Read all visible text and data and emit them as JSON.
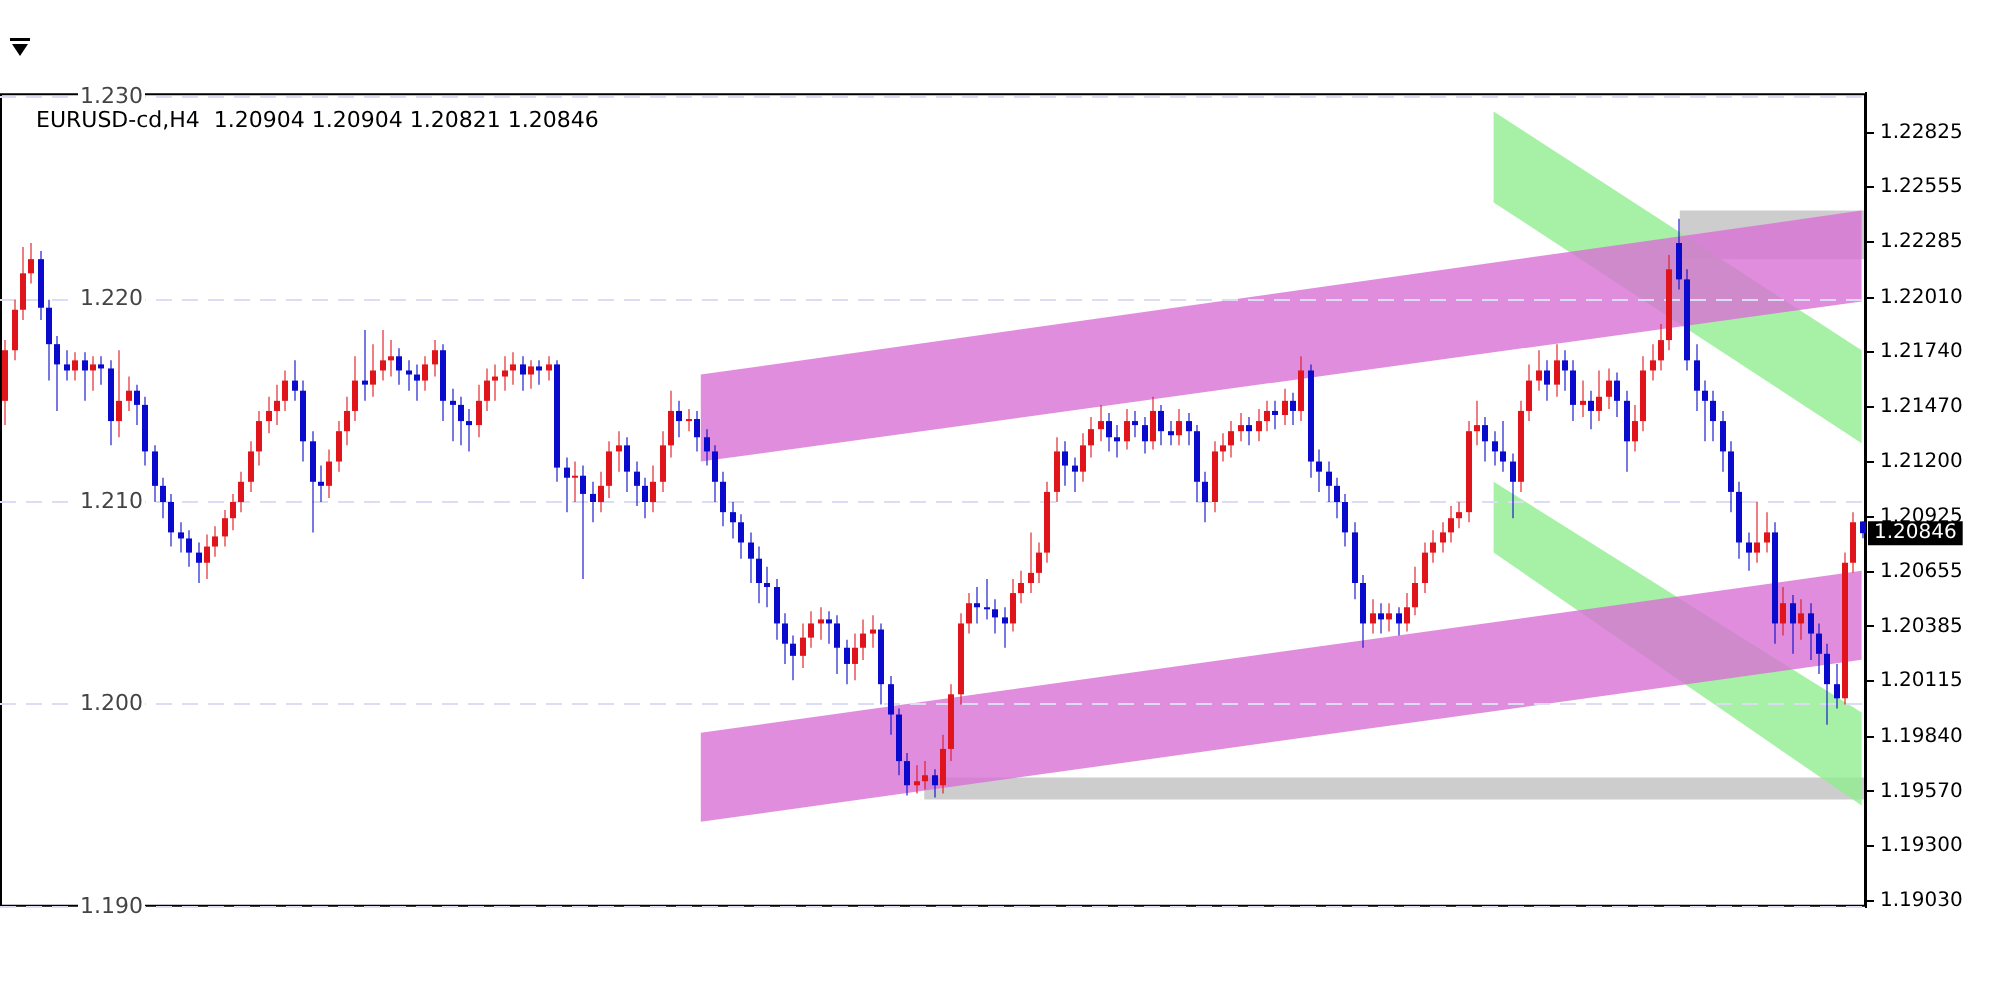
{
  "chart_data": {
    "type": "candlestick",
    "title": "EURUSD-cd,H4  1.20904 1.20904 1.20821 1.20846",
    "colors": [
      "#e0141b",
      "#e0141b",
      "#e0141b",
      "#e0141b",
      "#0a0acc",
      "#0a0acc",
      "#0a0acc",
      "#0a0acc",
      "#e0141b",
      "#0a0acc",
      "#e0141b",
      "#0a0acc",
      "#0a0acc",
      "#e0141b",
      "#e0141b",
      "#0a0acc",
      "#0a0acc",
      "#0a0acc",
      "#0a0acc",
      "#0a0acc",
      "#0a0acc",
      "#0a0acc",
      "#0a0acc",
      "#e0141b",
      "#e0141b",
      "#e0141b",
      "#e0141b",
      "#e0141b",
      "#e0141b",
      "#e0141b",
      "#e0141b",
      "#e0141b",
      "#e0141b",
      "#0a0acc",
      "#0a0acc",
      "#0a0acc",
      "#0a0acc",
      "#e0141b",
      "#e0141b",
      "#e0141b",
      "#e0141b",
      "#0a0acc",
      "#e0141b",
      "#e0141b",
      "#e0141b",
      "#0a0acc",
      "#0a0acc",
      "#0a0acc",
      "#e0141b",
      "#e0141b",
      "#0a0acc",
      "#0a0acc",
      "#0a0acc",
      "#0a0acc",
      "#e0141b",
      "#e0141b",
      "#e0141b",
      "#e0141b",
      "#e0141b",
      "#0a0acc",
      "#e0141b",
      "#0a0acc",
      "#e0141b",
      "#0a0acc",
      "#0a0acc",
      "#e0141b",
      "#0a0acc",
      "#0a0acc",
      "#e0141b",
      "#e0141b",
      "#e0141b",
      "#0a0acc",
      "#0a0acc",
      "#0a0acc",
      "#e0141b",
      "#e0141b",
      "#e0141b",
      "#0a0acc",
      "#e0141b",
      "#0a0acc",
      "#0a0acc",
      "#0a0acc",
      "#0a0acc",
      "#0a0acc",
      "#0a0acc",
      "#0a0acc",
      "#0a0acc",
      "#0a0acc",
      "#0a0acc",
      "#0a0acc",
      "#0a0acc",
      "#e0141b",
      "#e0141b",
      "#e0141b",
      "#0a0acc",
      "#0a0acc",
      "#0a0acc",
      "#e0141b",
      "#e0141b",
      "#e0141b",
      "#0a0acc",
      "#0a0acc",
      "#0a0acc",
      "#0a0acc",
      "#e0141b",
      "#e0141b",
      "#0a0acc",
      "#e0141b",
      "#e0141b",
      "#e0141b",
      "#e0141b",
      "#0a0acc",
      "#0a0acc",
      "#0a0acc",
      "#0a0acc",
      "#e0141b",
      "#e0141b",
      "#e0141b",
      "#e0141b",
      "#e0141b",
      "#e0141b",
      "#0a0acc",
      "#0a0acc",
      "#e0141b",
      "#e0141b",
      "#e0141b",
      "#0a0acc",
      "#0a0acc",
      "#e0141b",
      "#0a0acc",
      "#0a0acc",
      "#e0141b",
      "#0a0acc",
      "#0a0acc",
      "#e0141b",
      "#0a0acc",
      "#0a0acc",
      "#0a0acc",
      "#e0141b",
      "#e0141b",
      "#e0141b",
      "#e0141b",
      "#0a0acc",
      "#e0141b",
      "#e0141b",
      "#0a0acc",
      "#e0141b",
      "#0a0acc",
      "#e0141b",
      "#0a0acc",
      "#0a0acc",
      "#0a0acc",
      "#0a0acc",
      "#0a0acc",
      "#0a0acc",
      "#0a0acc",
      "#e0141b",
      "#0a0acc",
      "#e0141b",
      "#0a0acc",
      "#e0141b",
      "#e0141b",
      "#e0141b",
      "#e0141b",
      "#e0141b",
      "#e0141b",
      "#e0141b",
      "#e0141b",
      "#e0141b",
      "#0a0acc",
      "#0a0acc",
      "#0a0acc",
      "#0a0acc",
      "#e0141b",
      "#e0141b",
      "#e0141b",
      "#0a0acc",
      "#e0141b",
      "#0a0acc",
      "#0a0acc",
      "#e0141b",
      "#0a0acc",
      "#e0141b",
      "#e0141b",
      "#0a0acc",
      "#0a0acc",
      "#e0141b",
      "#e0141b",
      "#e0141b",
      "#e0141b",
      "#e0141b",
      "#0a0acc",
      "#0a0acc",
      "#0a0acc",
      "#0a0acc",
      "#0a0acc",
      "#0a0acc",
      "#0a0acc",
      "#0a0acc",
      "#0a0acc",
      "#e0141b",
      "#e0141b",
      "#0a0acc",
      "#e0141b",
      "#0a0acc",
      "#e0141b",
      "#0a0acc",
      "#0a0acc",
      "#0a0acc",
      "#0a0acc",
      "#e0141b",
      "#e0141b",
      "#0a0acc"
    ],
    "ylim": [
      1.19,
      1.2302
    ],
    "yticks": [
      {
        "value": 1.19,
        "label": "1.190"
      },
      {
        "value": 1.2,
        "label": "1.200"
      },
      {
        "value": 1.21,
        "label": "1.210"
      },
      {
        "value": 1.22,
        "label": "1.220"
      },
      {
        "value": 1.23,
        "label": "1.230"
      }
    ],
    "y2lim": [
      1.19,
      1.2302
    ],
    "y2ticks": [
      {
        "value": 1.1903,
        "label": "1.19030"
      },
      {
        "value": 1.193,
        "label": "1.19300"
      },
      {
        "value": 1.1957,
        "label": "1.19570"
      },
      {
        "value": 1.1984,
        "label": "1.19840"
      },
      {
        "value": 1.20115,
        "label": "1.20115"
      },
      {
        "value": 1.20385,
        "label": "1.20385"
      },
      {
        "value": 1.20655,
        "label": "1.20655"
      },
      {
        "value": 1.20925,
        "label": "1.20925"
      },
      {
        "value": 1.212,
        "label": "1.21200"
      },
      {
        "value": 1.2147,
        "label": "1.21470"
      },
      {
        "value": 1.2174,
        "label": "1.21740"
      },
      {
        "value": 1.2201,
        "label": "1.22010"
      },
      {
        "value": 1.22285,
        "label": "1.22285"
      },
      {
        "value": 1.22555,
        "label": "1.22555"
      },
      {
        "value": 1.22825,
        "label": "1.22825"
      }
    ],
    "grid": "y",
    "annotations": [
      "1.20846"
    ],
    "categories": [
      null,
      null,
      null,
      null,
      null,
      null,
      null,
      null,
      null,
      null,
      null,
      null,
      null,
      null,
      null,
      null,
      null,
      null,
      null,
      null,
      null,
      null,
      null,
      null,
      null,
      null,
      null,
      null,
      null,
      null,
      null,
      null,
      null,
      null,
      null,
      null,
      null,
      null,
      null,
      null,
      null,
      null,
      null,
      null,
      null,
      null,
      null,
      null,
      null,
      null,
      null,
      null,
      null,
      null,
      null,
      null,
      null,
      null,
      null,
      null,
      null,
      null,
      null,
      null,
      null,
      null,
      null,
      null,
      null,
      null,
      null,
      null,
      null,
      null,
      null,
      null,
      null,
      null,
      null,
      null,
      null,
      null,
      null,
      null,
      null,
      null,
      null,
      null,
      null,
      null,
      null,
      null,
      null,
      null,
      null,
      null,
      null,
      null,
      null,
      null,
      null,
      null,
      null,
      null,
      null,
      null,
      null,
      null,
      null,
      null,
      null,
      null,
      null,
      null,
      null,
      null,
      null,
      null,
      null,
      null,
      null,
      null,
      null,
      null,
      null,
      null,
      null,
      null,
      null,
      null,
      null,
      null,
      null,
      null,
      null,
      null,
      null,
      null,
      null,
      null,
      null,
      null,
      null,
      null,
      null,
      null,
      null,
      null,
      null,
      null,
      null,
      null,
      null,
      null,
      null,
      null,
      null,
      null,
      null,
      null,
      null,
      null,
      null,
      null,
      null,
      null,
      null,
      null,
      null,
      null,
      null,
      null,
      null,
      null,
      null,
      null,
      null,
      null,
      null,
      null,
      null,
      null,
      null,
      null,
      null,
      null,
      null,
      null,
      null,
      null,
      null,
      null,
      null,
      null,
      null,
      null,
      null,
      null,
      null,
      null,
      null,
      null,
      null,
      null,
      null,
      null,
      null,
      null,
      null,
      null,
      null,
      null,
      null
    ],
    "ohlc": [
      [
        1.215,
        1.218,
        1.2138,
        1.2175
      ],
      [
        1.2175,
        1.22,
        1.217,
        1.2195
      ],
      [
        1.2195,
        1.2226,
        1.219,
        1.2213
      ],
      [
        1.2213,
        1.2228,
        1.2208,
        1.222
      ],
      [
        1.222,
        1.2224,
        1.219,
        1.2196
      ],
      [
        1.2196,
        1.22,
        1.216,
        1.2178
      ],
      [
        1.2178,
        1.2182,
        1.2145,
        1.2168
      ],
      [
        1.2168,
        1.2175,
        1.216,
        1.2165
      ],
      [
        1.2165,
        1.2174,
        1.216,
        1.217
      ],
      [
        1.217,
        1.2174,
        1.215,
        1.2165
      ],
      [
        1.2165,
        1.2172,
        1.2155,
        1.2168
      ],
      [
        1.2168,
        1.2172,
        1.2158,
        1.2166
      ],
      [
        1.2166,
        1.217,
        1.2128,
        1.214
      ],
      [
        1.214,
        1.2175,
        1.2132,
        1.215
      ],
      [
        1.215,
        1.2162,
        1.2145,
        1.2155
      ],
      [
        1.2155,
        1.2158,
        1.2138,
        1.2148
      ],
      [
        1.2148,
        1.2152,
        1.2118,
        1.2125
      ],
      [
        1.2125,
        1.2128,
        1.21,
        1.2108
      ],
      [
        1.2108,
        1.2112,
        1.2092,
        1.21
      ],
      [
        1.21,
        1.2104,
        1.2078,
        1.2085
      ],
      [
        1.2085,
        1.209,
        1.2075,
        1.2082
      ],
      [
        1.2082,
        1.2086,
        1.2068,
        1.2075
      ],
      [
        1.2075,
        1.208,
        1.206,
        1.207
      ],
      [
        1.207,
        1.2084,
        1.2062,
        1.2078
      ],
      [
        1.2078,
        1.2088,
        1.2073,
        1.2083
      ],
      [
        1.2083,
        1.2096,
        1.2078,
        1.2092
      ],
      [
        1.2092,
        1.2104,
        1.2086,
        1.21
      ],
      [
        1.21,
        1.2115,
        1.2095,
        1.211
      ],
      [
        1.211,
        1.213,
        1.2105,
        1.2125
      ],
      [
        1.2125,
        1.2145,
        1.2118,
        1.214
      ],
      [
        1.214,
        1.2152,
        1.2134,
        1.2145
      ],
      [
        1.2145,
        1.2158,
        1.2138,
        1.215
      ],
      [
        1.215,
        1.2165,
        1.2145,
        1.216
      ],
      [
        1.216,
        1.217,
        1.215,
        1.2155
      ],
      [
        1.2155,
        1.216,
        1.212,
        1.213
      ],
      [
        1.213,
        1.2135,
        1.2085,
        1.211
      ],
      [
        1.211,
        1.2118,
        1.21,
        1.2108
      ],
      [
        1.2108,
        1.2126,
        1.2102,
        1.212
      ],
      [
        1.212,
        1.214,
        1.2115,
        1.2135
      ],
      [
        1.2135,
        1.2152,
        1.2128,
        1.2145
      ],
      [
        1.2145,
        1.2172,
        1.214,
        1.216
      ],
      [
        1.216,
        1.2185,
        1.215,
        1.2158
      ],
      [
        1.2158,
        1.2178,
        1.2152,
        1.2165
      ],
      [
        1.2165,
        1.2185,
        1.216,
        1.217
      ],
      [
        1.217,
        1.218,
        1.2162,
        1.2172
      ],
      [
        1.2172,
        1.2176,
        1.2158,
        1.2165
      ],
      [
        1.2165,
        1.217,
        1.2155,
        1.2163
      ],
      [
        1.2163,
        1.2168,
        1.215,
        1.216
      ],
      [
        1.216,
        1.2172,
        1.2155,
        1.2168
      ],
      [
        1.2168,
        1.218,
        1.2162,
        1.2175
      ],
      [
        1.2175,
        1.2178,
        1.214,
        1.215
      ],
      [
        1.215,
        1.2156,
        1.213,
        1.2148
      ],
      [
        1.2148,
        1.2152,
        1.2128,
        1.214
      ],
      [
        1.214,
        1.2146,
        1.2125,
        1.2138
      ],
      [
        1.2138,
        1.2158,
        1.2132,
        1.215
      ],
      [
        1.215,
        1.2166,
        1.2145,
        1.216
      ],
      [
        1.216,
        1.2168,
        1.215,
        1.2162
      ],
      [
        1.2162,
        1.2172,
        1.2155,
        1.2165
      ],
      [
        1.2165,
        1.2174,
        1.2158,
        1.2168
      ],
      [
        1.2168,
        1.2172,
        1.2155,
        1.2163
      ],
      [
        1.2163,
        1.217,
        1.2156,
        1.2167
      ],
      [
        1.2167,
        1.217,
        1.2158,
        1.2165
      ],
      [
        1.2165,
        1.2172,
        1.216,
        1.2168
      ],
      [
        1.2168,
        1.217,
        1.211,
        1.2117
      ],
      [
        1.2117,
        1.2122,
        1.2095,
        1.2112
      ],
      [
        1.2112,
        1.212,
        1.21,
        1.2113
      ],
      [
        1.2113,
        1.2118,
        1.2062,
        1.2104
      ],
      [
        1.2104,
        1.211,
        1.209,
        1.21
      ],
      [
        1.21,
        1.2115,
        1.2095,
        1.2108
      ],
      [
        1.2108,
        1.213,
        1.2102,
        1.2125
      ],
      [
        1.2125,
        1.2135,
        1.2115,
        1.2128
      ],
      [
        1.2128,
        1.2132,
        1.2105,
        1.2115
      ],
      [
        1.2115,
        1.212,
        1.2098,
        1.2108
      ],
      [
        1.2108,
        1.2112,
        1.2092,
        1.21
      ],
      [
        1.21,
        1.2118,
        1.2095,
        1.211
      ],
      [
        1.211,
        1.2135,
        1.2105,
        1.2128
      ],
      [
        1.2128,
        1.2155,
        1.2122,
        1.2145
      ],
      [
        1.2145,
        1.215,
        1.2132,
        1.214
      ],
      [
        1.214,
        1.2146,
        1.2135,
        1.2141
      ],
      [
        1.2141,
        1.2145,
        1.2125,
        1.2132
      ],
      [
        1.2132,
        1.2136,
        1.2118,
        1.2125
      ],
      [
        1.2125,
        1.2128,
        1.21,
        1.211
      ],
      [
        1.211,
        1.2115,
        1.2088,
        1.2095
      ],
      [
        1.2095,
        1.21,
        1.2082,
        1.209
      ],
      [
        1.209,
        1.2094,
        1.2072,
        1.208
      ],
      [
        1.208,
        1.2085,
        1.206,
        1.2072
      ],
      [
        1.2072,
        1.2078,
        1.205,
        1.206
      ],
      [
        1.206,
        1.2068,
        1.2048,
        1.2058
      ],
      [
        1.2058,
        1.2062,
        1.2032,
        1.204
      ],
      [
        1.204,
        1.2045,
        1.202,
        1.203
      ],
      [
        1.203,
        1.2034,
        1.2012,
        1.2024
      ],
      [
        1.2024,
        1.204,
        1.2018,
        1.2033
      ],
      [
        1.2033,
        1.2046,
        1.2028,
        1.204
      ],
      [
        1.204,
        1.2048,
        1.2032,
        1.2042
      ],
      [
        1.2042,
        1.2046,
        1.203,
        1.204
      ],
      [
        1.204,
        1.2044,
        1.2015,
        1.2028
      ],
      [
        1.2028,
        1.2032,
        1.201,
        1.202
      ],
      [
        1.202,
        1.2035,
        1.2012,
        1.2028
      ],
      [
        1.2028,
        1.2042,
        1.2022,
        1.2035
      ],
      [
        1.2035,
        1.2044,
        1.2028,
        1.2037
      ],
      [
        1.2037,
        1.204,
        1.2,
        1.201
      ],
      [
        1.201,
        1.2014,
        1.1985,
        1.1995
      ],
      [
        1.1995,
        1.1998,
        1.1965,
        1.1972
      ],
      [
        1.1972,
        1.1976,
        1.1955,
        1.196
      ],
      [
        1.196,
        1.197,
        1.1956,
        1.1962
      ],
      [
        1.1962,
        1.1972,
        1.1958,
        1.1965
      ],
      [
        1.1965,
        1.1968,
        1.1954,
        1.196
      ],
      [
        1.196,
        1.1985,
        1.1956,
        1.1978
      ],
      [
        1.1978,
        1.201,
        1.1972,
        1.2005
      ],
      [
        1.2005,
        1.2045,
        1.2,
        1.204
      ],
      [
        1.204,
        1.2055,
        1.2035,
        1.205
      ],
      [
        1.205,
        1.2058,
        1.204,
        1.2048
      ],
      [
        1.2048,
        1.2062,
        1.2042,
        1.2047
      ],
      [
        1.2047,
        1.2052,
        1.2035,
        1.2043
      ],
      [
        1.2043,
        1.2048,
        1.2028,
        1.204
      ],
      [
        1.204,
        1.2062,
        1.2036,
        1.2055
      ],
      [
        1.2055,
        1.2066,
        1.205,
        1.206
      ],
      [
        1.206,
        1.2085,
        1.2055,
        1.2065
      ],
      [
        1.2065,
        1.208,
        1.206,
        1.2075
      ],
      [
        1.2075,
        1.211,
        1.207,
        1.2105
      ],
      [
        1.2105,
        1.2132,
        1.21,
        1.2125
      ],
      [
        1.2125,
        1.213,
        1.2108,
        1.2118
      ],
      [
        1.2118,
        1.2122,
        1.2105,
        1.2115
      ],
      [
        1.2115,
        1.2134,
        1.211,
        1.2128
      ],
      [
        1.2128,
        1.2142,
        1.2122,
        1.2136
      ],
      [
        1.2136,
        1.2148,
        1.213,
        1.214
      ],
      [
        1.214,
        1.2144,
        1.2125,
        1.2132
      ],
      [
        1.2132,
        1.2138,
        1.2122,
        1.213
      ],
      [
        1.213,
        1.2146,
        1.2126,
        1.214
      ],
      [
        1.214,
        1.2145,
        1.2132,
        1.2138
      ],
      [
        1.2138,
        1.2142,
        1.2124,
        1.213
      ],
      [
        1.213,
        1.2152,
        1.2126,
        1.2145
      ],
      [
        1.2145,
        1.2148,
        1.2128,
        1.2135
      ],
      [
        1.2135,
        1.214,
        1.2128,
        1.2133
      ],
      [
        1.2133,
        1.2146,
        1.2128,
        1.214
      ],
      [
        1.214,
        1.2144,
        1.2128,
        1.2135
      ],
      [
        1.2135,
        1.2138,
        1.21,
        1.211
      ],
      [
        1.211,
        1.2115,
        1.209,
        1.21
      ],
      [
        1.21,
        1.213,
        1.2095,
        1.2125
      ],
      [
        1.2125,
        1.2134,
        1.212,
        1.2128
      ],
      [
        1.2128,
        1.214,
        1.2122,
        1.2135
      ],
      [
        1.2135,
        1.2144,
        1.213,
        1.2138
      ],
      [
        1.2138,
        1.2142,
        1.2128,
        1.2135
      ],
      [
        1.2135,
        1.2146,
        1.213,
        1.214
      ],
      [
        1.214,
        1.215,
        1.2135,
        1.2145
      ],
      [
        1.2145,
        1.215,
        1.2136,
        1.2143
      ],
      [
        1.2143,
        1.2156,
        1.2138,
        1.215
      ],
      [
        1.215,
        1.2154,
        1.2138,
        1.2145
      ],
      [
        1.2145,
        1.2172,
        1.214,
        1.2165
      ],
      [
        1.2165,
        1.2168,
        1.2112,
        1.212
      ],
      [
        1.212,
        1.2126,
        1.2105,
        1.2115
      ],
      [
        1.2115,
        1.212,
        1.21,
        1.2108
      ],
      [
        1.2108,
        1.2112,
        1.2092,
        1.21
      ],
      [
        1.21,
        1.2104,
        1.2078,
        1.2085
      ],
      [
        1.2085,
        1.209,
        1.2052,
        1.206
      ],
      [
        1.206,
        1.2064,
        1.2028,
        1.204
      ],
      [
        1.204,
        1.2052,
        1.2035,
        1.2045
      ],
      [
        1.2045,
        1.205,
        1.2035,
        1.2042
      ],
      [
        1.2042,
        1.205,
        1.2036,
        1.2045
      ],
      [
        1.2045,
        1.2048,
        1.2034,
        1.204
      ],
      [
        1.204,
        1.2055,
        1.2036,
        1.2048
      ],
      [
        1.2048,
        1.2068,
        1.2044,
        1.206
      ],
      [
        1.206,
        1.208,
        1.2055,
        1.2075
      ],
      [
        1.2075,
        1.2086,
        1.207,
        1.208
      ],
      [
        1.208,
        1.209,
        1.2075,
        1.2085
      ],
      [
        1.2085,
        1.2098,
        1.208,
        1.2092
      ],
      [
        1.2092,
        1.21,
        1.2087,
        1.2095
      ],
      [
        1.2095,
        1.214,
        1.209,
        1.2135
      ],
      [
        1.2135,
        1.215,
        1.2128,
        1.2138
      ],
      [
        1.2138,
        1.2142,
        1.212,
        1.213
      ],
      [
        1.213,
        1.2135,
        1.2118,
        1.2125
      ],
      [
        1.2125,
        1.214,
        1.2115,
        1.212
      ],
      [
        1.212,
        1.2124,
        1.2092,
        1.211
      ],
      [
        1.211,
        1.215,
        1.2105,
        1.2145
      ],
      [
        1.2145,
        1.2168,
        1.214,
        1.216
      ],
      [
        1.216,
        1.2175,
        1.2155,
        1.2165
      ],
      [
        1.2165,
        1.217,
        1.215,
        1.2158
      ],
      [
        1.2158,
        1.2178,
        1.2152,
        1.217
      ],
      [
        1.217,
        1.2175,
        1.2155,
        1.2165
      ],
      [
        1.2165,
        1.217,
        1.214,
        1.2148
      ],
      [
        1.2148,
        1.216,
        1.2142,
        1.215
      ],
      [
        1.215,
        1.2155,
        1.2136,
        1.2145
      ],
      [
        1.2145,
        1.2165,
        1.214,
        1.2152
      ],
      [
        1.2152,
        1.2166,
        1.2146,
        1.216
      ],
      [
        1.216,
        1.2164,
        1.2142,
        1.215
      ],
      [
        1.215,
        1.2155,
        1.2115,
        1.213
      ],
      [
        1.213,
        1.2148,
        1.2125,
        1.214
      ],
      [
        1.214,
        1.2172,
        1.2135,
        1.2165
      ],
      [
        1.2165,
        1.2178,
        1.216,
        1.217
      ],
      [
        1.217,
        1.2188,
        1.2165,
        1.218
      ],
      [
        1.218,
        1.2222,
        1.2175,
        1.2215
      ],
      [
        1.2228,
        1.224,
        1.2205,
        1.221
      ],
      [
        1.221,
        1.2215,
        1.2165,
        1.217
      ],
      [
        1.217,
        1.2178,
        1.2145,
        1.2155
      ],
      [
        1.2155,
        1.216,
        1.213,
        1.215
      ],
      [
        1.215,
        1.2155,
        1.213,
        1.214
      ],
      [
        1.214,
        1.2145,
        1.2115,
        1.2125
      ],
      [
        1.2125,
        1.213,
        1.2095,
        1.2105
      ],
      [
        1.2105,
        1.211,
        1.2072,
        1.208
      ],
      [
        1.208,
        1.2085,
        1.2066,
        1.2075
      ],
      [
        1.2075,
        1.21,
        1.207,
        1.208
      ],
      [
        1.208,
        1.2095,
        1.2075,
        1.2085
      ],
      [
        1.2085,
        1.209,
        1.203,
        1.204
      ],
      [
        1.204,
        1.2058,
        1.2034,
        1.205
      ],
      [
        1.205,
        1.2054,
        1.2025,
        1.204
      ],
      [
        1.204,
        1.2052,
        1.2032,
        1.2045
      ],
      [
        1.2045,
        1.205,
        1.2022,
        1.2035
      ],
      [
        1.2035,
        1.204,
        1.2015,
        1.2025
      ],
      [
        1.2025,
        1.203,
        1.199,
        1.201
      ],
      [
        1.201,
        1.202,
        1.1998,
        1.2003
      ],
      [
        1.2003,
        1.2075,
        1.2,
        1.207
      ],
      [
        1.207,
        1.2095,
        1.2065,
        1.209
      ],
      [
        1.20904,
        1.20904,
        1.20821,
        1.20846
      ]
    ],
    "tick_labels": "y"
  }
}
